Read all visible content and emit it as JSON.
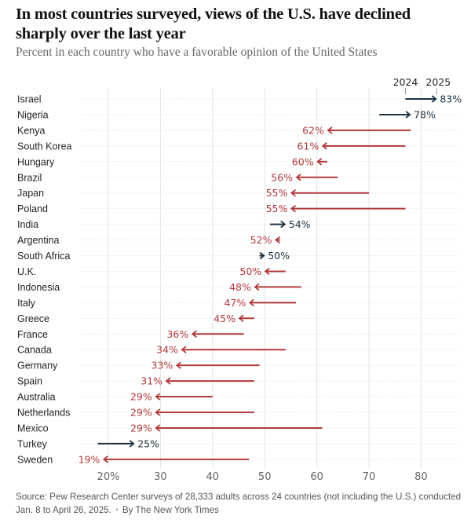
{
  "header": {
    "title": "In most countries surveyed, views of the U.S. have declined sharply over the last year",
    "subtitle": "Percent in each country who have a favorable opinion of the United States"
  },
  "footer": {
    "source": "Source: Pew Research Center surveys of 28,333 adults across 24 countries (not including the U.S.) conducted Jan. 8 to April 26, 2025.",
    "byline": "By The New York Times"
  },
  "colors": {
    "decline": "#b0393b",
    "increase": "#1d3241",
    "grid": "#e3e3e3",
    "label": "#222222",
    "tick": "#666666"
  },
  "chart_data": {
    "type": "arrow-dot",
    "title": "In most countries surveyed, views of the U.S. have declined sharply over the last year",
    "subtitle": "Percent in each country who have a favorable opinion of the United States",
    "xlabel": "",
    "ylabel": "",
    "xlim": [
      15,
      85
    ],
    "xticks": [
      20,
      30,
      40,
      50,
      60,
      70,
      80
    ],
    "xtick_labels": [
      "20%",
      "30",
      "40",
      "50",
      "60",
      "70",
      "80"
    ],
    "series_labels": {
      "start": "2024",
      "end": "2025"
    },
    "grid": true,
    "categories": [
      "Israel",
      "Nigeria",
      "Kenya",
      "South Korea",
      "Hungary",
      "Brazil",
      "Japan",
      "Poland",
      "India",
      "Argentina",
      "South Africa",
      "U.K.",
      "Indonesia",
      "Italy",
      "Greece",
      "France",
      "Canada",
      "Germany",
      "Spain",
      "Australia",
      "Netherlands",
      "Mexico",
      "Turkey",
      "Sweden"
    ],
    "series": [
      {
        "name": "2024",
        "values": [
          77,
          72,
          78,
          77,
          62,
          64,
          70,
          77,
          51,
          53,
          49,
          54,
          57,
          56,
          48,
          46,
          54,
          49,
          48,
          40,
          48,
          61,
          18,
          47
        ]
      },
      {
        "name": "2025",
        "values": [
          83,
          78,
          62,
          61,
          60,
          56,
          55,
          55,
          54,
          52,
          50,
          50,
          48,
          47,
          45,
          36,
          34,
          33,
          31,
          29,
          29,
          29,
          25,
          19
        ]
      }
    ],
    "value_labels": [
      "83%",
      "78%",
      "62%",
      "61%",
      "60%",
      "56%",
      "55%",
      "55%",
      "54%",
      "52%",
      "50%",
      "50%",
      "48%",
      "47%",
      "45%",
      "36%",
      "34%",
      "33%",
      "31%",
      "29%",
      "29%",
      "29%",
      "25%",
      "19%"
    ]
  }
}
